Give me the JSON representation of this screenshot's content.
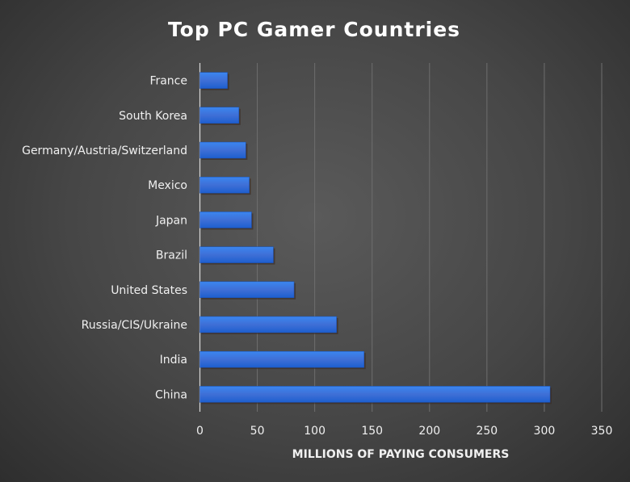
{
  "chart_data": {
    "type": "bar",
    "orientation": "horizontal",
    "title": "Top PC Gamer Countries",
    "xlabel": "MILLIONS OF PAYING CONSUMERS",
    "ylabel": "",
    "categories": [
      "France",
      "South Korea",
      "Germany/Austria/Switzerland",
      "Mexico",
      "Japan",
      "Brazil",
      "United States",
      "Russia/CIS/Ukraine",
      "India",
      "China"
    ],
    "values": [
      24,
      34,
      40,
      43,
      45,
      64,
      82,
      119,
      143,
      305
    ],
    "xlim": [
      0,
      350
    ],
    "xticks": [
      0,
      50,
      100,
      150,
      200,
      250,
      300,
      350
    ],
    "grid": true,
    "bar_color": "#2f6fd8"
  }
}
